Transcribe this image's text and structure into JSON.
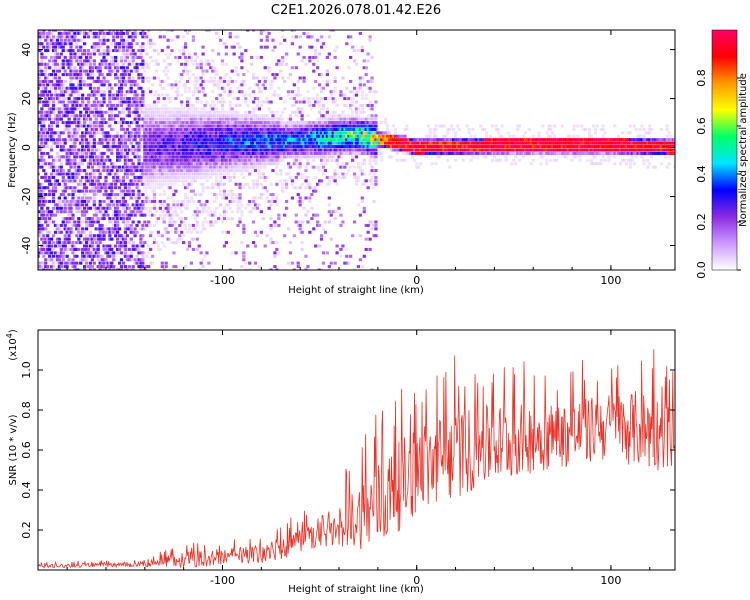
{
  "title": "C2E1.2026.078.01.42.E26",
  "chart_data": [
    {
      "type": "heatmap",
      "name": "spectrogram",
      "title": "C2E1.2026.078.01.42.E26",
      "xlabel": "Height of straight line (km)",
      "ylabel": "Frequency (Hz)",
      "xlim": [
        -195,
        133
      ],
      "ylim": [
        -50,
        48
      ],
      "xticks": [
        -100,
        0,
        100
      ],
      "xtick_labels": [
        "-100",
        "0",
        "100"
      ],
      "yticks": [
        -40,
        -20,
        0,
        20,
        40
      ],
      "ytick_labels": [
        "-40",
        "-20",
        "0",
        "20",
        "40"
      ],
      "colorbar": {
        "label": "Normalized spectral amplitude",
        "range": [
          0.0,
          1.0
        ],
        "ticks": [
          0.0,
          0.2,
          0.4,
          0.6,
          0.8
        ],
        "tick_labels": [
          "0.0",
          "0.2",
          "0.4",
          "0.6",
          "0.8"
        ],
        "colors": [
          "#ffffff",
          "#cc99ff",
          "#8a2be2",
          "#0000ff",
          "#00e5ff",
          "#00ff66",
          "#ffff00",
          "#ff9900",
          "#ff0000",
          "#ff0066"
        ]
      },
      "description_series": {
        "x": [
          -195,
          -140,
          -100,
          -60,
          -30,
          -10,
          0,
          50,
          100,
          133
        ],
        "center_frequency": [
          0,
          0,
          2,
          3,
          5,
          2,
          0,
          1,
          1,
          0
        ],
        "peak_amplitude": [
          0.15,
          0.25,
          0.35,
          0.45,
          0.6,
          0.95,
          0.95,
          0.97,
          0.97,
          0.95
        ]
      }
    },
    {
      "type": "line",
      "name": "snr",
      "xlabel": "Height of straight line (km)",
      "ylabel": "SNR (10 * v/v)",
      "y_multiplier": "(x10",
      "y_multiplier_exp": "4",
      "y_multiplier_close": ")",
      "xlim": [
        -195,
        133
      ],
      "ylim": [
        0,
        1.2
      ],
      "xticks": [
        -100,
        0,
        100
      ],
      "xtick_labels": [
        "-100",
        "0",
        "100"
      ],
      "yticks": [
        0.2,
        0.4,
        0.6,
        0.8,
        1.0
      ],
      "ytick_labels": [
        "0.2",
        "0.4",
        "0.6",
        "0.8",
        "1.0"
      ],
      "color": "#e8332a",
      "envelope": {
        "x": [
          -195,
          -140,
          -120,
          -80,
          -60,
          -40,
          -20,
          0,
          20,
          40,
          60,
          80,
          100,
          120,
          133
        ],
        "mean": [
          0.02,
          0.03,
          0.05,
          0.08,
          0.13,
          0.22,
          0.32,
          0.5,
          0.58,
          0.63,
          0.66,
          0.68,
          0.72,
          0.7,
          0.65
        ],
        "max": [
          0.04,
          0.06,
          0.14,
          0.18,
          0.3,
          0.45,
          0.82,
          1.0,
          1.08,
          1.08,
          1.05,
          1.05,
          1.1,
          1.15,
          1.0
        ]
      }
    }
  ]
}
